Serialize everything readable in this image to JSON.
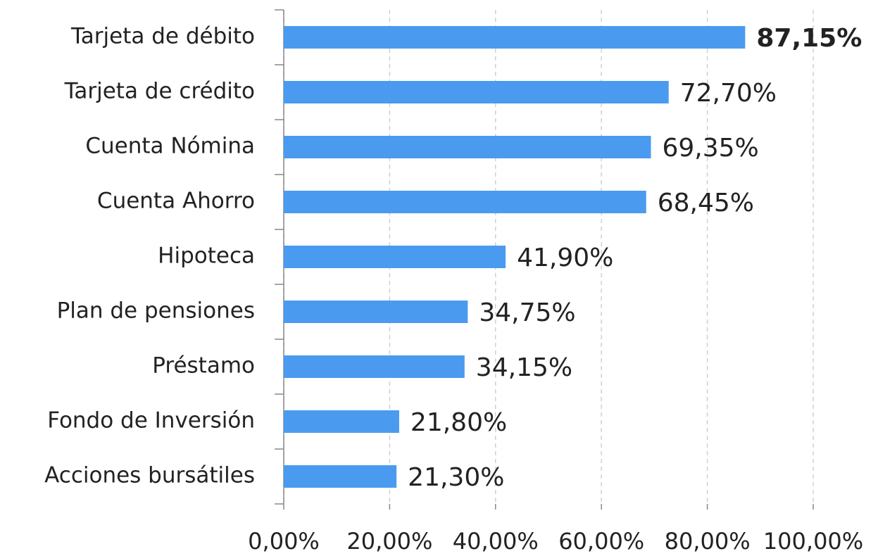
{
  "chart_data": {
    "type": "bar",
    "orientation": "horizontal",
    "categories": [
      "Tarjeta de débito",
      "Tarjeta de crédito",
      "Cuenta Nómina",
      "Cuenta Ahorro",
      "Hipoteca",
      "Plan de pensiones",
      "Préstamo",
      "Fondo de Inversión",
      "Acciones bursátiles"
    ],
    "values": [
      87.15,
      72.7,
      69.35,
      68.45,
      41.9,
      34.75,
      34.15,
      21.8,
      21.3
    ],
    "value_labels": [
      "87,15%",
      "72,70%",
      "69,35%",
      "68,45%",
      "41,90%",
      "34,75%",
      "34,15%",
      "21,80%",
      "21,30%"
    ],
    "color": "#4a9af0",
    "xlim": [
      0,
      100
    ],
    "xticks": [
      {
        "value": 0,
        "label": "0,00%"
      },
      {
        "value": 20,
        "label": "20,00%"
      },
      {
        "value": 40,
        "label": "40,00%"
      },
      {
        "value": 60,
        "label": "60,00%"
      },
      {
        "value": 80,
        "label": "80,00%"
      },
      {
        "value": 100,
        "label": "100,00%"
      }
    ],
    "grid": true
  }
}
